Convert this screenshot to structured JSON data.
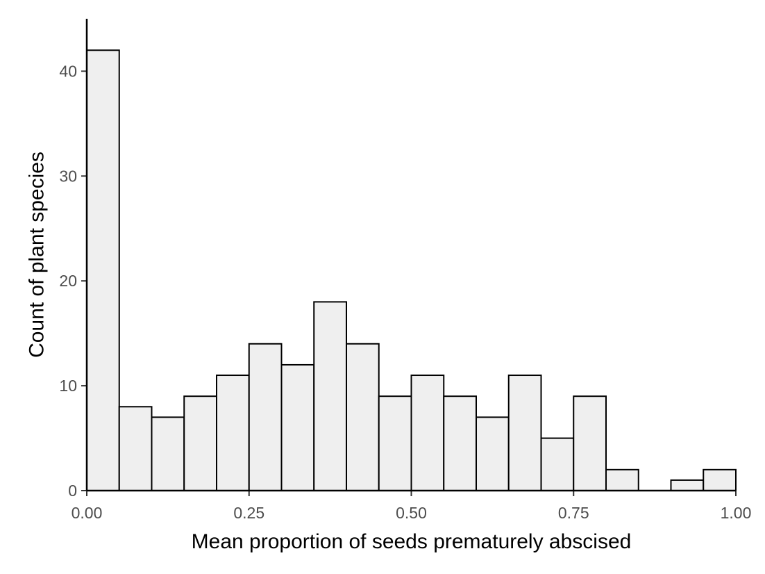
{
  "chart_data": {
    "type": "bar",
    "title": "",
    "xlabel": "Mean proportion of seeds prematurely abscised",
    "ylabel": "Count of plant species",
    "xlim": [
      0,
      1
    ],
    "ylim": [
      0,
      45
    ],
    "x_ticks": [
      0,
      0.25,
      0.5,
      0.75,
      1
    ],
    "x_tick_labels": [
      "0.00",
      "0.25",
      "0.50",
      "0.75",
      "1.00"
    ],
    "y_ticks": [
      0,
      10,
      20,
      30,
      40
    ],
    "y_tick_labels": [
      "0",
      "10",
      "20",
      "30",
      "40"
    ],
    "bin_width": 0.05,
    "bins": [
      {
        "x0": 0.0,
        "x1": 0.05,
        "count": 42
      },
      {
        "x0": 0.05,
        "x1": 0.1,
        "count": 8
      },
      {
        "x0": 0.1,
        "x1": 0.15,
        "count": 7
      },
      {
        "x0": 0.15,
        "x1": 0.2,
        "count": 9
      },
      {
        "x0": 0.2,
        "x1": 0.25,
        "count": 11
      },
      {
        "x0": 0.25,
        "x1": 0.3,
        "count": 14
      },
      {
        "x0": 0.3,
        "x1": 0.35,
        "count": 12
      },
      {
        "x0": 0.35,
        "x1": 0.4,
        "count": 18
      },
      {
        "x0": 0.4,
        "x1": 0.45,
        "count": 14
      },
      {
        "x0": 0.45,
        "x1": 0.5,
        "count": 9
      },
      {
        "x0": 0.5,
        "x1": 0.55,
        "count": 11
      },
      {
        "x0": 0.55,
        "x1": 0.6,
        "count": 9
      },
      {
        "x0": 0.6,
        "x1": 0.65,
        "count": 7
      },
      {
        "x0": 0.65,
        "x1": 0.7,
        "count": 11
      },
      {
        "x0": 0.7,
        "x1": 0.75,
        "count": 5
      },
      {
        "x0": 0.75,
        "x1": 0.8,
        "count": 9
      },
      {
        "x0": 0.8,
        "x1": 0.85,
        "count": 2
      },
      {
        "x0": 0.85,
        "x1": 0.9,
        "count": 0
      },
      {
        "x0": 0.9,
        "x1": 0.95,
        "count": 1
      },
      {
        "x0": 0.95,
        "x1": 1.0,
        "count": 2
      }
    ],
    "bar_fill": "#efefef",
    "bar_stroke": "#000000",
    "grid": false,
    "legend": "none"
  }
}
